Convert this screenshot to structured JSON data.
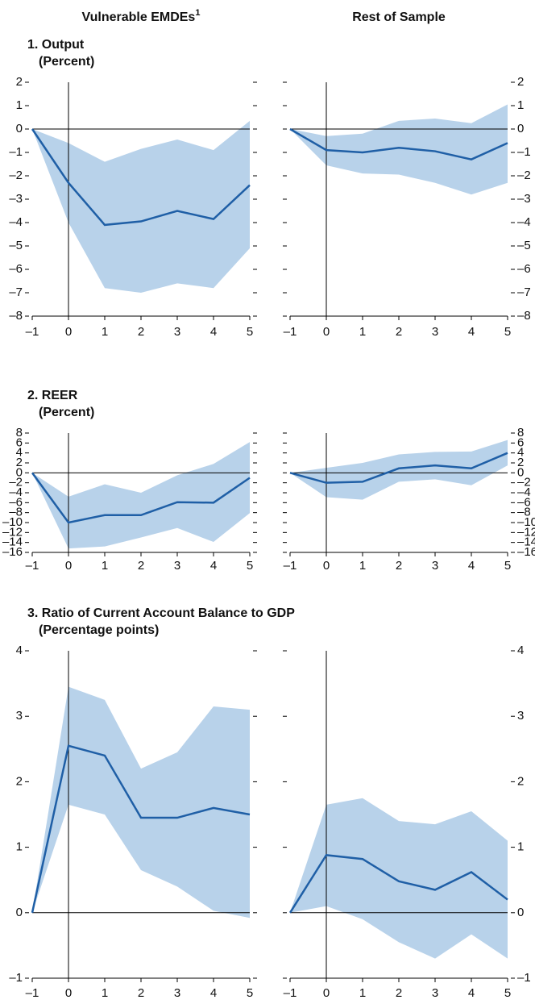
{
  "column_headers": [
    {
      "text": "Vulnerable EMDEs",
      "note": "1"
    },
    {
      "text": "Rest of Sample"
    }
  ],
  "chart_data": [
    {
      "type": "line",
      "title": "1. Output",
      "subtitle": "(Percent)",
      "ytick_side": "left",
      "color": "#1f5fa6",
      "band_color": "#b8d2ea",
      "x": [
        -1,
        0,
        1,
        2,
        3,
        4,
        5
      ],
      "values": [
        0,
        -2.3,
        -4.1,
        -3.95,
        -3.5,
        -3.85,
        -2.4
      ],
      "lower": [
        0,
        -4.0,
        -6.8,
        -7.0,
        -6.6,
        -6.8,
        -5.1
      ],
      "upper": [
        0,
        -0.6,
        -1.4,
        -0.85,
        -0.45,
        -0.9,
        0.35
      ],
      "xlim": [
        -1,
        5
      ],
      "xticks": [
        {
          "value": -1,
          "label": "–1"
        },
        0,
        1,
        2,
        3,
        4,
        5
      ],
      "ylim": [
        -8,
        2
      ],
      "yticks": [
        {
          "value": -8,
          "label": "–8"
        },
        {
          "value": -7,
          "label": "–7"
        },
        {
          "value": -6,
          "label": "–6"
        },
        {
          "value": -5,
          "label": "–5"
        },
        {
          "value": -4,
          "label": "–4"
        },
        {
          "value": -3,
          "label": "–3"
        },
        {
          "value": -2,
          "label": "–2"
        },
        {
          "value": -1,
          "label": "–1"
        },
        0,
        1,
        2
      ]
    },
    {
      "type": "line",
      "ytick_side": "right",
      "color": "#1f5fa6",
      "band_color": "#b8d2ea",
      "x": [
        -1,
        0,
        1,
        2,
        3,
        4,
        5
      ],
      "values": [
        0,
        -0.9,
        -1.0,
        -0.8,
        -0.95,
        -1.3,
        -0.6
      ],
      "lower": [
        0,
        -1.55,
        -1.9,
        -1.95,
        -2.3,
        -2.8,
        -2.3
      ],
      "upper": [
        0,
        -0.3,
        -0.2,
        0.35,
        0.45,
        0.25,
        1.05
      ],
      "xlim": [
        -1,
        5
      ],
      "xticks": [
        {
          "value": -1,
          "label": "–1"
        },
        0,
        1,
        2,
        3,
        4,
        5
      ],
      "ylim": [
        -8,
        2
      ],
      "yticks": [
        {
          "value": -8,
          "label": "–8"
        },
        {
          "value": -7,
          "label": "–7"
        },
        {
          "value": -6,
          "label": "–6"
        },
        {
          "value": -5,
          "label": "–5"
        },
        {
          "value": -4,
          "label": "–4"
        },
        {
          "value": -3,
          "label": "–3"
        },
        {
          "value": -2,
          "label": "–2"
        },
        {
          "value": -1,
          "label": "–1"
        },
        0,
        1,
        2
      ]
    },
    {
      "type": "line",
      "title": "2. REER",
      "subtitle": "(Percent)",
      "ytick_side": "left",
      "color": "#1f5fa6",
      "band_color": "#b8d2ea",
      "x": [
        -1,
        0,
        1,
        2,
        3,
        4,
        5
      ],
      "values": [
        0,
        -10,
        -8.5,
        -8.5,
        -5.9,
        -6,
        -1
      ],
      "lower": [
        0,
        -15.2,
        -14.8,
        -13,
        -11.1,
        -13.9,
        -8.1
      ],
      "upper": [
        0,
        -4.8,
        -2.3,
        -4,
        -0.5,
        1.8,
        6.2
      ],
      "xlim": [
        -1,
        5
      ],
      "xticks": [
        {
          "value": -1,
          "label": "–1"
        },
        0,
        1,
        2,
        3,
        4,
        5
      ],
      "ylim": [
        -16,
        8
      ],
      "yticks": [
        {
          "value": -16,
          "label": "–16"
        },
        {
          "value": -14,
          "label": "–14"
        },
        {
          "value": -12,
          "label": "–12"
        },
        {
          "value": -10,
          "label": "–10"
        },
        {
          "value": -8,
          "label": "–8"
        },
        {
          "value": -6,
          "label": "–6"
        },
        {
          "value": -4,
          "label": "–4"
        },
        {
          "value": -2,
          "label": "–2"
        },
        0,
        2,
        4,
        6,
        8
      ]
    },
    {
      "type": "line",
      "ytick_side": "right",
      "color": "#1f5fa6",
      "band_color": "#b8d2ea",
      "x": [
        -1,
        0,
        1,
        2,
        3,
        4,
        5
      ],
      "values": [
        0,
        -2,
        -1.8,
        0.9,
        1.5,
        0.9,
        4
      ],
      "lower": [
        0,
        -4.9,
        -5.4,
        -1.8,
        -1.3,
        -2.5,
        1.5
      ],
      "upper": [
        0,
        1,
        2,
        3.7,
        4.2,
        4.3,
        6.6
      ],
      "xlim": [
        -1,
        5
      ],
      "xticks": [
        {
          "value": -1,
          "label": "–1"
        },
        0,
        1,
        2,
        3,
        4,
        5
      ],
      "ylim": [
        -16,
        8
      ],
      "yticks": [
        {
          "value": -16,
          "label": "–16"
        },
        {
          "value": -14,
          "label": "–14"
        },
        {
          "value": -12,
          "label": "–12"
        },
        {
          "value": -10,
          "label": "–10"
        },
        {
          "value": -8,
          "label": "–8"
        },
        {
          "value": -6,
          "label": "–6"
        },
        {
          "value": -4,
          "label": "–4"
        },
        {
          "value": -2,
          "label": "–2"
        },
        0,
        2,
        4,
        6,
        8
      ]
    },
    {
      "type": "line",
      "title": "3. Ratio of Current Account Balance to GDP",
      "subtitle": "(Percentage points)",
      "ytick_side": "left",
      "color": "#1f5fa6",
      "band_color": "#b8d2ea",
      "x": [
        -1,
        0,
        1,
        2,
        3,
        4,
        5
      ],
      "values": [
        0,
        2.55,
        2.4,
        1.45,
        1.45,
        1.6,
        1.5
      ],
      "lower": [
        0,
        1.65,
        1.5,
        0.65,
        0.4,
        0.03,
        -0.08
      ],
      "upper": [
        0,
        3.45,
        3.25,
        2.2,
        2.45,
        3.15,
        3.1
      ],
      "xlim": [
        -1,
        5
      ],
      "xticks": [
        {
          "value": -1,
          "label": "–1"
        },
        0,
        1,
        2,
        3,
        4,
        5
      ],
      "ylim": [
        -1,
        4
      ],
      "yticks": [
        {
          "value": -1,
          "label": "–1"
        },
        0,
        1,
        2,
        3,
        4
      ]
    },
    {
      "type": "line",
      "ytick_side": "right",
      "color": "#1f5fa6",
      "band_color": "#b8d2ea",
      "x": [
        -1,
        0,
        1,
        2,
        3,
        4,
        5
      ],
      "values": [
        0,
        0.88,
        0.82,
        0.48,
        0.35,
        0.62,
        0.2
      ],
      "lower": [
        0,
        0.1,
        -0.1,
        -0.45,
        -0.7,
        -0.33,
        -0.7
      ],
      "upper": [
        0,
        1.65,
        1.75,
        1.4,
        1.35,
        1.55,
        1.1
      ],
      "xlim": [
        -1,
        5
      ],
      "xticks": [
        {
          "value": -1,
          "label": "–1"
        },
        0,
        1,
        2,
        3,
        4,
        5
      ],
      "ylim": [
        -1,
        4
      ],
      "yticks": [
        {
          "value": -1,
          "label": "–1"
        },
        0,
        1,
        2,
        3,
        4
      ]
    }
  ]
}
